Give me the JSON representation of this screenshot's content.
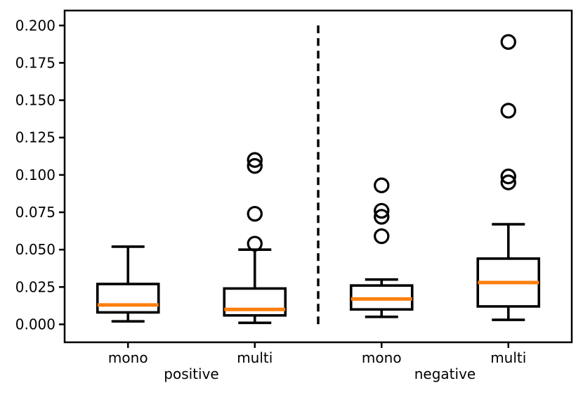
{
  "chart_data": {
    "type": "box",
    "title": "",
    "xlabel": "",
    "ylabel": "",
    "ylim": [
      -0.012,
      0.21
    ],
    "xlim": [
      0.5,
      4.5
    ],
    "grid": false,
    "legend": null,
    "yticks": [
      0.0,
      0.025,
      0.05,
      0.075,
      0.1,
      0.125,
      0.15,
      0.175,
      0.2
    ],
    "ytick_labels": [
      "0.000",
      "0.025",
      "0.050",
      "0.075",
      "0.100",
      "0.125",
      "0.150",
      "0.175",
      "0.200"
    ],
    "categories": [
      "mono",
      "multi",
      "mono",
      "multi"
    ],
    "group_labels": [
      {
        "label": "positive",
        "center_position": 1.5
      },
      {
        "label": "negative",
        "center_position": 3.5
      }
    ],
    "boxes": [
      {
        "group": "positive",
        "category": "mono",
        "position": 1,
        "whisker_low": 0.002,
        "q1": 0.008,
        "median": 0.013,
        "q3": 0.027,
        "whisker_high": 0.052,
        "outliers": []
      },
      {
        "group": "positive",
        "category": "multi",
        "position": 2,
        "whisker_low": 0.001,
        "q1": 0.006,
        "median": 0.01,
        "q3": 0.024,
        "whisker_high": 0.05,
        "outliers": [
          0.054,
          0.074,
          0.106,
          0.11
        ]
      },
      {
        "group": "negative",
        "category": "mono",
        "position": 3,
        "whisker_low": 0.005,
        "q1": 0.01,
        "median": 0.017,
        "q3": 0.026,
        "whisker_high": 0.03,
        "outliers": [
          0.059,
          0.072,
          0.076,
          0.093
        ]
      },
      {
        "group": "negative",
        "category": "multi",
        "position": 4,
        "whisker_low": 0.003,
        "q1": 0.012,
        "median": 0.028,
        "q3": 0.044,
        "whisker_high": 0.067,
        "outliers": [
          0.095,
          0.099,
          0.143,
          0.189
        ]
      }
    ],
    "divider": {
      "style": "dashed",
      "position": 2.5,
      "y_from": 0.0,
      "y_to": 0.2
    },
    "colors": {
      "box_line": "#000000",
      "median_line": "#ff7f0e",
      "outlier_line": "#000000",
      "divider_line": "#000000",
      "background": "#ffffff"
    }
  }
}
